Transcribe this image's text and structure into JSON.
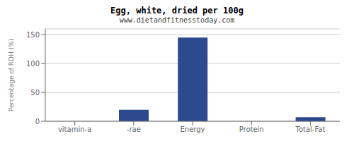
{
  "chart_data": {
    "type": "bar",
    "title": "Egg, white, dried per 100g",
    "subtitle": "www.dietandfitnesstoday.com",
    "ylabel": "Percentage of RDH (%)",
    "categories": [
      "vitamin-a",
      "-rae",
      "Energy",
      "Protein",
      "Total-Fat"
    ],
    "values": [
      0,
      20,
      145,
      0,
      7
    ],
    "color": "#2e4a8e",
    "ylim": [
      0,
      160
    ],
    "yticks": [
      0,
      50,
      100,
      150
    ],
    "grid": true
  }
}
